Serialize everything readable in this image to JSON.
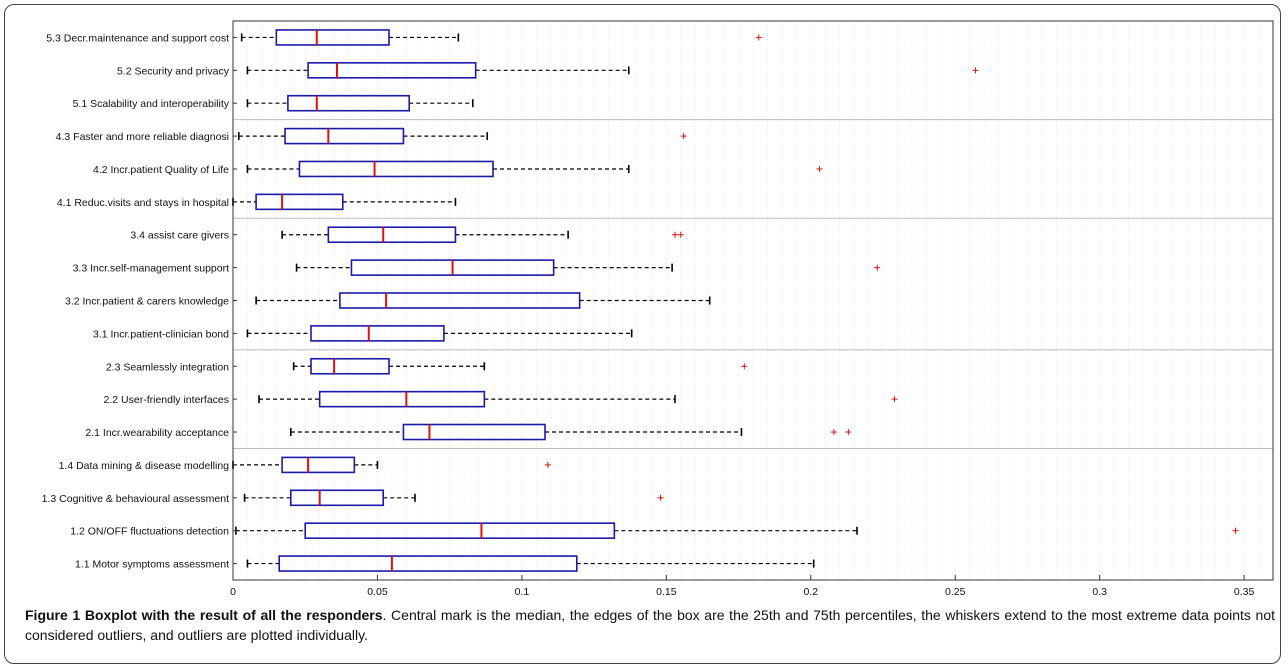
{
  "figure": {
    "label": "Figure 1",
    "title": "Boxplot with the result of all the responders",
    "caption": ". Central mark is the median, the edges of the box are the 25th and 75th percentiles, the whiskers extend to the most extreme data points not considered outliers, and outliers are plotted individually."
  },
  "chart_data": {
    "type": "boxplot",
    "orientation": "horizontal",
    "xlim": [
      0,
      0.36
    ],
    "xticks": [
      0,
      0.05,
      0.1,
      0.15,
      0.2,
      0.25,
      0.3,
      0.35
    ],
    "xtick_labels": [
      "0",
      "0.05",
      "0.1",
      "0.15",
      "0.2",
      "0.25",
      "0.3",
      "0.35"
    ],
    "grid": "minor-vertical",
    "group_separators_after": [
      "5.1 Scalability and interoperability",
      "4.1 Reduc.visits and stays in hospital",
      "3.1 Incr.patient-clinician bond",
      "2.1 Incr.wearability acceptance"
    ],
    "colors": {
      "box": "#1a1aaa",
      "median": "#dd1111",
      "whisker": "#000000",
      "outlier": "#dd1111",
      "grid": "#dddddd",
      "separator": "#bbbbbb"
    },
    "categories": [
      "5.3 Decr.maintenance and support cost",
      "5.2 Security and privacy",
      "5.1 Scalability and interoperability",
      "4.3 Faster and more reliable diagnosi",
      "4.2 Incr.patient Quality of Life",
      "4.1 Reduc.visits and stays in hospital",
      "3.4 assist care givers",
      "3.3 Incr.self-management support",
      "3.2 Incr.patient & carers knowledge",
      "3.1 Incr.patient-clinician bond",
      "2.3 Seamlessly integration",
      "2.2 User-friendly interfaces",
      "2.1 Incr.wearability acceptance",
      "1.4 Data mining & disease modelling",
      "1.3 Cognitive & behavioural assessment",
      "1.2 ON/OFF fluctuations detection",
      "1.1 Motor symptoms assessment"
    ],
    "boxes": [
      {
        "whisker_low": 0.003,
        "q1": 0.015,
        "median": 0.029,
        "q3": 0.054,
        "whisker_high": 0.078,
        "outliers": [
          0.182
        ]
      },
      {
        "whisker_low": 0.005,
        "q1": 0.026,
        "median": 0.036,
        "q3": 0.084,
        "whisker_high": 0.137,
        "outliers": [
          0.257
        ]
      },
      {
        "whisker_low": 0.005,
        "q1": 0.019,
        "median": 0.029,
        "q3": 0.061,
        "whisker_high": 0.083,
        "outliers": []
      },
      {
        "whisker_low": 0.002,
        "q1": 0.018,
        "median": 0.033,
        "q3": 0.059,
        "whisker_high": 0.088,
        "outliers": [
          0.156
        ]
      },
      {
        "whisker_low": 0.005,
        "q1": 0.023,
        "median": 0.049,
        "q3": 0.09,
        "whisker_high": 0.137,
        "outliers": [
          0.203
        ]
      },
      {
        "whisker_low": 0.0,
        "q1": 0.008,
        "median": 0.017,
        "q3": 0.038,
        "whisker_high": 0.077,
        "outliers": []
      },
      {
        "whisker_low": 0.017,
        "q1": 0.033,
        "median": 0.052,
        "q3": 0.077,
        "whisker_high": 0.116,
        "outliers": [
          0.153,
          0.155
        ]
      },
      {
        "whisker_low": 0.022,
        "q1": 0.041,
        "median": 0.076,
        "q3": 0.111,
        "whisker_high": 0.152,
        "outliers": [
          0.223
        ]
      },
      {
        "whisker_low": 0.008,
        "q1": 0.037,
        "median": 0.053,
        "q3": 0.12,
        "whisker_high": 0.165,
        "outliers": []
      },
      {
        "whisker_low": 0.005,
        "q1": 0.027,
        "median": 0.047,
        "q3": 0.073,
        "whisker_high": 0.138,
        "outliers": []
      },
      {
        "whisker_low": 0.021,
        "q1": 0.027,
        "median": 0.035,
        "q3": 0.054,
        "whisker_high": 0.087,
        "outliers": [
          0.177
        ]
      },
      {
        "whisker_low": 0.009,
        "q1": 0.03,
        "median": 0.06,
        "q3": 0.087,
        "whisker_high": 0.153,
        "outliers": [
          0.229
        ]
      },
      {
        "whisker_low": 0.02,
        "q1": 0.059,
        "median": 0.068,
        "q3": 0.108,
        "whisker_high": 0.176,
        "outliers": [
          0.208,
          0.213
        ]
      },
      {
        "whisker_low": 0.0,
        "q1": 0.017,
        "median": 0.026,
        "q3": 0.042,
        "whisker_high": 0.05,
        "outliers": [
          0.109
        ]
      },
      {
        "whisker_low": 0.004,
        "q1": 0.02,
        "median": 0.03,
        "q3": 0.052,
        "whisker_high": 0.063,
        "outliers": [
          0.148
        ]
      },
      {
        "whisker_low": 0.001,
        "q1": 0.025,
        "median": 0.086,
        "q3": 0.132,
        "whisker_high": 0.216,
        "outliers": [
          0.347
        ]
      },
      {
        "whisker_low": 0.005,
        "q1": 0.016,
        "median": 0.055,
        "q3": 0.119,
        "whisker_high": 0.201,
        "outliers": []
      }
    ]
  }
}
